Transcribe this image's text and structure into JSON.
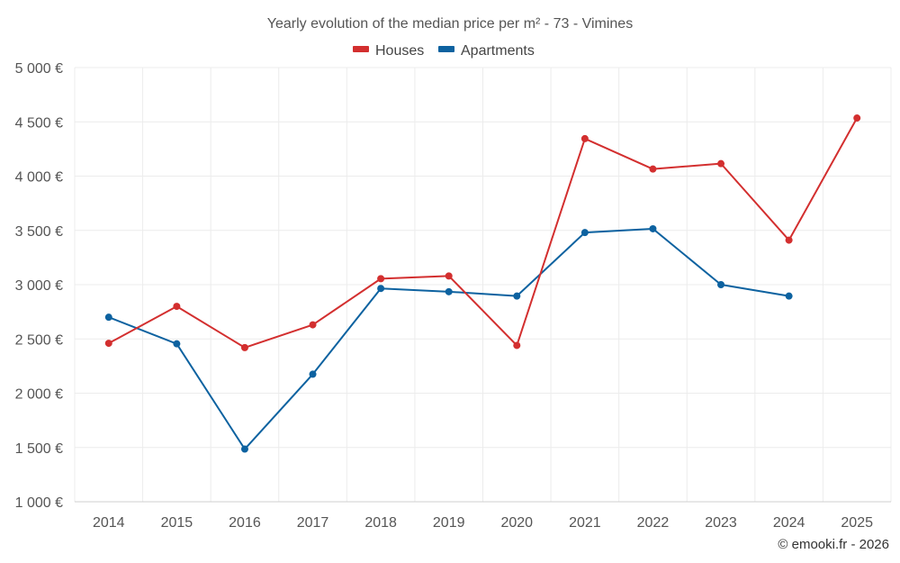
{
  "chart_data": {
    "type": "line",
    "title": "Yearly evolution of the median price per m² - 73 - Vimines",
    "categories": [
      "2014",
      "2015",
      "2016",
      "2017",
      "2018",
      "2019",
      "2020",
      "2021",
      "2022",
      "2023",
      "2024",
      "2025"
    ],
    "ylim": [
      1000,
      5000
    ],
    "yticks": [
      1000,
      1500,
      2000,
      2500,
      3000,
      3500,
      4000,
      4500,
      5000
    ],
    "ytick_labels": [
      "1 000 €",
      "1 500 €",
      "2 000 €",
      "2 500 €",
      "3 000 €",
      "3 500 €",
      "4 000 €",
      "4 500 €",
      "5 000 €"
    ],
    "grid": true,
    "legend_position": "top-center",
    "series": [
      {
        "name": "Houses",
        "color": "#d32f2f",
        "values": [
          2460,
          2800,
          2420,
          2630,
          3055,
          3080,
          2440,
          4345,
          4065,
          4115,
          3410,
          4535
        ]
      },
      {
        "name": "Apartments",
        "color": "#0d62a0",
        "values": [
          2700,
          2455,
          1485,
          2175,
          2965,
          2935,
          2895,
          3480,
          3515,
          3000,
          2895,
          null
        ]
      }
    ],
    "credit": "© emooki.fr - 2026"
  }
}
